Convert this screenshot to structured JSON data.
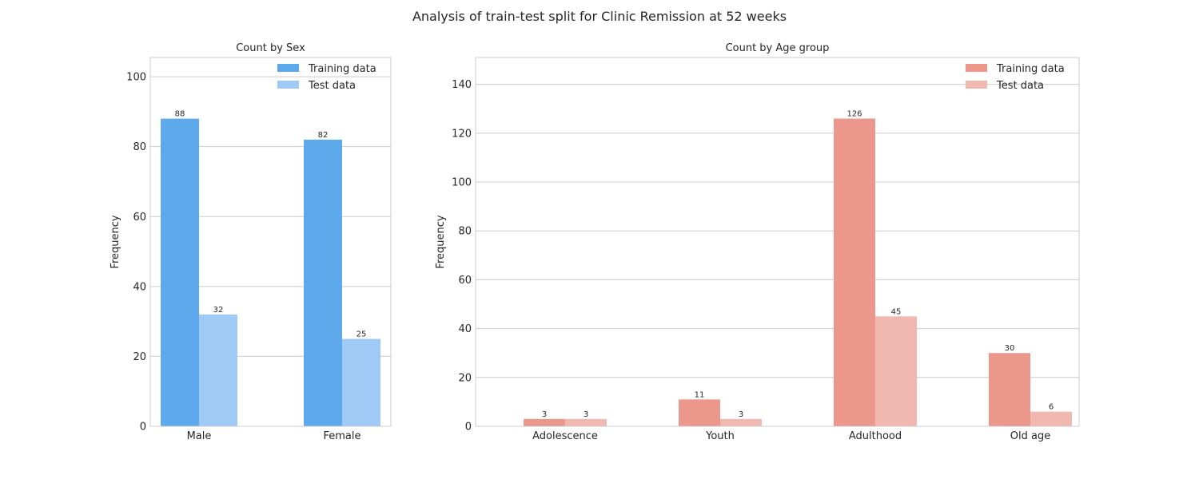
{
  "suptitle": "Analysis of train-test split for Clinic Remission at 52 weeks",
  "chart_data": [
    {
      "type": "bar",
      "title": "Count by Sex",
      "xlabel": "",
      "ylabel": "Frequency",
      "categories": [
        "Male",
        "Female"
      ],
      "ylim": [
        0,
        105.5
      ],
      "yticks": [
        0,
        20,
        40,
        60,
        80,
        100
      ],
      "grid": "y",
      "legend": "top-right",
      "series": [
        {
          "name": "Training data",
          "values": [
            88,
            82
          ],
          "color": "#5DA9EC"
        },
        {
          "name": "Test data",
          "values": [
            32,
            25
          ],
          "color": "#9ECAF5"
        }
      ]
    },
    {
      "type": "bar",
      "title": "Count by Age group",
      "xlabel": "",
      "ylabel": "Frequency",
      "categories": [
        "Adolescence",
        "Youth",
        "Adulthood",
        "Old age"
      ],
      "ylim": [
        0,
        151
      ],
      "yticks": [
        0,
        20,
        40,
        60,
        80,
        100,
        120,
        140
      ],
      "grid": "y",
      "legend": "top-right",
      "series": [
        {
          "name": "Training data",
          "values": [
            3,
            11,
            126,
            30
          ],
          "color": "#EC978B"
        },
        {
          "name": "Test data",
          "values": [
            3,
            3,
            45,
            6
          ],
          "color": "#F0B8AF"
        }
      ]
    }
  ]
}
